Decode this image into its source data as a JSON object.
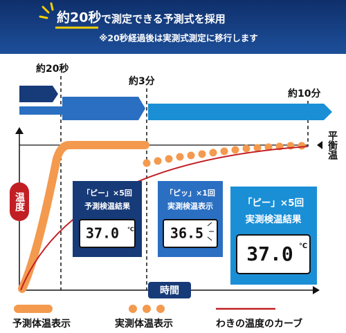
{
  "header": {
    "title_highlight": "約20秒",
    "title_rest": "で測定できる予測式を採用",
    "note": "※20秒経過後は実測式測定に移行します"
  },
  "timeline": {
    "labels": [
      "約20秒",
      "約3分",
      "約10分"
    ]
  },
  "equilibrium_label": "平衡温",
  "y_axis_label": "温度",
  "x_axis_label": "時間",
  "boxes": [
    {
      "line1": "「ピー」×5回",
      "line2": "予測検温結果",
      "reading": "37.0",
      "unit": "℃"
    },
    {
      "line1": "「ピッ」×1回",
      "line2": "実測検温表示",
      "reading": "36.5"
    },
    {
      "line1": "「ピー」×5回",
      "line2": "実測検温結果",
      "reading": "37.0",
      "unit": "℃"
    }
  ],
  "legend": [
    "予測体温表示",
    "実測体温表示",
    "わきの温度のカーブ"
  ]
}
